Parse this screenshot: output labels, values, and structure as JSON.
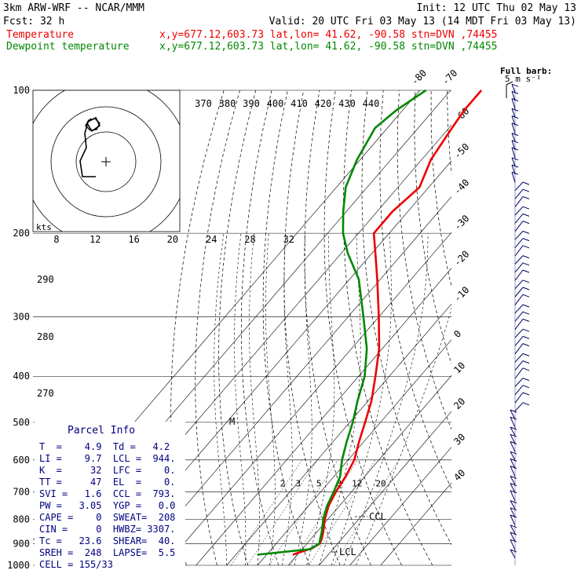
{
  "header": {
    "model": "3km ARW-WRF -- NCAR/MMM",
    "init": "Init: 12 UTC Thu 02 May 13",
    "fcst": "Fcst:    32 h",
    "valid": "Valid: 20 UTC Fri 03 May 13 (14 MDT Fri 03 May 13)"
  },
  "legend": [
    {
      "name": "Temperature",
      "info": "x,y=677.12,603.73   lat,lon= 41.62, -90.58   stn=DVN ,74455",
      "color": "#ee0000"
    },
    {
      "name": "Dewpoint temperature",
      "info": "x,y=677.12,603.73   lat,lon= 41.62, -90.58   stn=DVN ,74455",
      "color": "#008800"
    }
  ],
  "barb_legend": {
    "title": "Full barb:",
    "units": "5 m s⁻¹"
  },
  "chart_data": {
    "type": "line",
    "yscale": "log-pressure",
    "ylim": [
      1000,
      100
    ],
    "pressure_ticks": [
      "100",
      "200",
      "300",
      "400",
      "500",
      "600",
      "700",
      "800",
      "900",
      "1000"
    ],
    "temperature_ticks": [
      "-80",
      "-70",
      "-60",
      "-50",
      "-40",
      "-30",
      "-20",
      "-10",
      "0",
      "10",
      "20",
      "30",
      "40"
    ],
    "theta_e_ticks": [
      "370",
      "380",
      "390",
      "400",
      "410",
      "420",
      "430",
      "440"
    ],
    "theta_ticks": [
      "290",
      "280",
      "270"
    ],
    "mixing_ratio_ticks": [
      "2",
      "3",
      "5",
      "8",
      "12",
      "20"
    ],
    "inset_speed_ticks": [
      "8",
      "12",
      "16",
      "20",
      "24",
      "28",
      "32"
    ],
    "inset_speed_unit": "kts",
    "series": [
      {
        "name": "Temperature",
        "color": "#ee0000",
        "points": [
          [
            950,
            8.5
          ],
          [
            920,
            13.0
          ],
          [
            900,
            14.2
          ],
          [
            880,
            13.5
          ],
          [
            850,
            12.0
          ],
          [
            800,
            9.0
          ],
          [
            750,
            6.5
          ],
          [
            700,
            4.9
          ],
          [
            650,
            3.8
          ],
          [
            600,
            2.0
          ],
          [
            550,
            -1.5
          ],
          [
            500,
            -5.0
          ],
          [
            450,
            -9.0
          ],
          [
            400,
            -14.5
          ],
          [
            350,
            -21.0
          ],
          [
            300,
            -30.0
          ],
          [
            250,
            -41.0
          ],
          [
            220,
            -49.0
          ],
          [
            200,
            -55.0
          ],
          [
            180,
            -55.0
          ],
          [
            160,
            -53.0
          ],
          [
            140,
            -57.0
          ],
          [
            120,
            -59.0
          ],
          [
            110,
            -60.0
          ],
          [
            100,
            -60.0
          ]
        ]
      },
      {
        "name": "Dewpoint temperature",
        "color": "#008800",
        "points": [
          [
            950,
            -3.0
          ],
          [
            925,
            12.5
          ],
          [
            900,
            14.0
          ],
          [
            880,
            13.0
          ],
          [
            850,
            11.5
          ],
          [
            800,
            8.5
          ],
          [
            750,
            6.0
          ],
          [
            700,
            4.2
          ],
          [
            650,
            2.0
          ],
          [
            600,
            -2.0
          ],
          [
            550,
            -5.5
          ],
          [
            500,
            -9.0
          ],
          [
            450,
            -13.5
          ],
          [
            400,
            -18.0
          ],
          [
            350,
            -25.0
          ],
          [
            300,
            -35.0
          ],
          [
            250,
            -47.0
          ],
          [
            220,
            -58.0
          ],
          [
            200,
            -65.0
          ],
          [
            180,
            -71.0
          ],
          [
            160,
            -77.0
          ],
          [
            140,
            -81.0
          ],
          [
            120,
            -84.0
          ],
          [
            110,
            -82.0
          ],
          [
            100,
            -78.0
          ]
        ]
      }
    ],
    "annotations": [
      "M",
      "CCL",
      "LCL"
    ]
  },
  "parcel_info": {
    "title": "Parcel Info",
    "rows": [
      "T  =    4.9  Td =   4.2",
      "LI =    9.7  LCL =  944.",
      "K  =     32  LFC =    0.",
      "TT =     47  EL  =    0.",
      "SVI =   1.6  CCL =  793.",
      "PW =   3.05  YGP =   0.0",
      "CAPE =    0  SWEAT=  208",
      "CIN =     0  HWBZ= 3307.",
      "Tc =   23.6  SHEAR=  40.",
      "SREH =  248  LAPSE=  5.5",
      "CELL = 155/33"
    ]
  }
}
